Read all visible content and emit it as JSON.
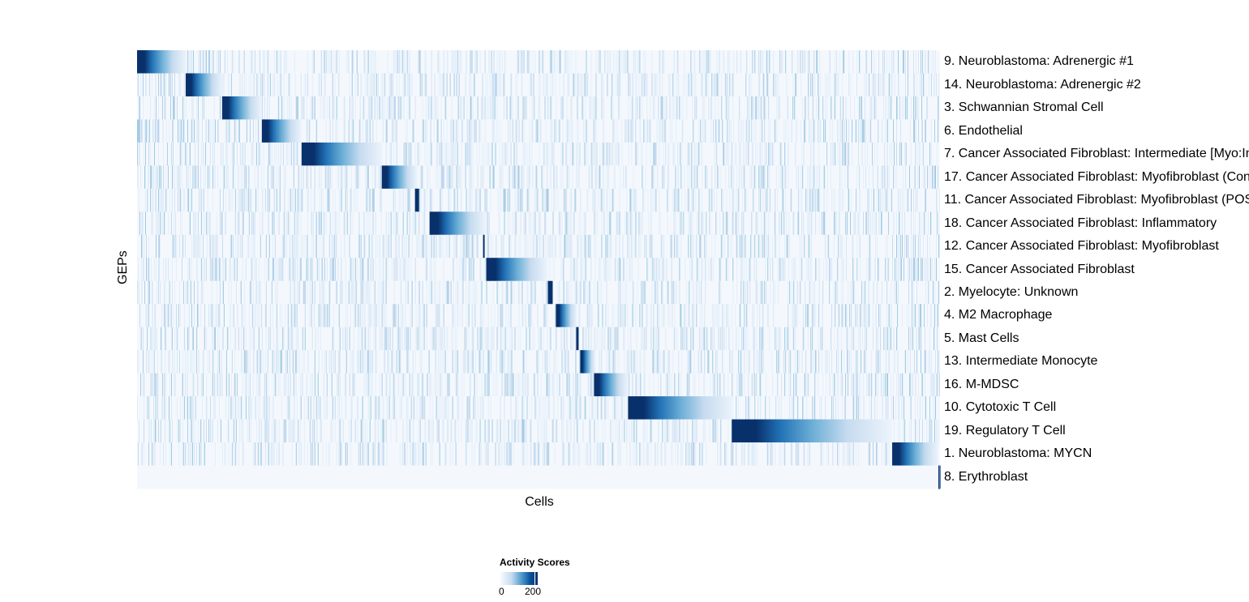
{
  "chart_data": {
    "type": "heatmap",
    "xlabel": "Cells",
    "ylabel": "GEPs",
    "total_cells": 991,
    "value_range": [
      0,
      250
    ],
    "legend": {
      "title": "Activity Scores",
      "ticks": [
        "0",
        "200"
      ],
      "position": "bottom"
    },
    "colors": {
      "low": "#f7fbff",
      "mid": "#6baed6",
      "high": "#08306b"
    },
    "rows": [
      {
        "label": "9. Neuroblastoma: Adrenergic #1",
        "peak_cells": [
          0,
          61
        ]
      },
      {
        "label": "14. Neuroblastoma: Adrenergic #2",
        "peak_cells": [
          60,
          106
        ]
      },
      {
        "label": "3. Schwannian Stromal Cell",
        "peak_cells": [
          105,
          154
        ]
      },
      {
        "label": "6. Endothelial",
        "peak_cells": [
          154,
          203
        ]
      },
      {
        "label": "7. Cancer Associated Fibroblast: Intermediate [Myo:In",
        "peak_cells": [
          203,
          303
        ]
      },
      {
        "label": "17. Cancer Associated Fibroblast: Myofibroblast (Con",
        "peak_cells": [
          302,
          346
        ]
      },
      {
        "label": "11. Cancer Associated Fibroblast: Myofibroblast (POS",
        "peak_cells": [
          343,
          348
        ]
      },
      {
        "label": "18. Cancer Associated Fibroblast: Inflammatory",
        "peak_cells": [
          361,
          431
        ]
      },
      {
        "label": "12. Cancer Associated Fibroblast: Myofibroblast",
        "peak_cells": [
          427,
          429
        ]
      },
      {
        "label": "15. Cancer Associated Fibroblast",
        "peak_cells": [
          431,
          507
        ]
      },
      {
        "label": "2. Myelocyte: Unknown",
        "peak_cells": [
          507,
          513
        ]
      },
      {
        "label": "4. M2 Macrophage",
        "peak_cells": [
          517,
          543
        ]
      },
      {
        "label": "5. Mast Cells",
        "peak_cells": [
          542,
          545
        ]
      },
      {
        "label": "13. Intermediate Monocyte",
        "peak_cells": [
          547,
          566
        ]
      },
      {
        "label": "16. M-MDSC",
        "peak_cells": [
          564,
          606
        ]
      },
      {
        "label": "10. Cytotoxic T Cell",
        "peak_cells": [
          606,
          736
        ]
      },
      {
        "label": "19. Regulatory T Cell",
        "peak_cells": [
          734,
          932
        ]
      },
      {
        "label": "1. Neuroblastoma: MYCN",
        "peak_cells": [
          932,
          989
        ]
      },
      {
        "label": "8. Erythroblast",
        "peak_cells": [
          989,
          991
        ]
      }
    ]
  }
}
